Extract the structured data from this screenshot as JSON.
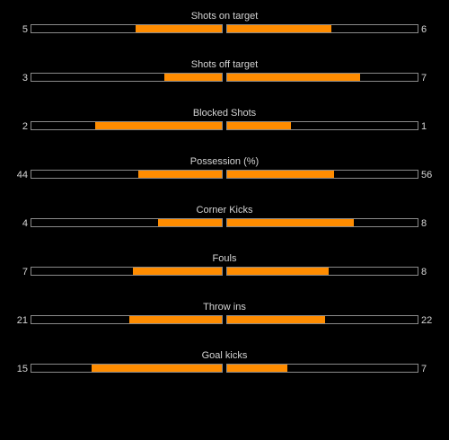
{
  "colors": {
    "background": "#000000",
    "fill": "#ff8c00",
    "border": "#8a8a8a",
    "text": "#d4d4d4"
  },
  "stats": [
    {
      "label": "Shots on target",
      "home": "5",
      "away": "6",
      "home_ratio": 0.455,
      "away_ratio": 0.545
    },
    {
      "label": "Shots off target",
      "home": "3",
      "away": "7",
      "home_ratio": 0.3,
      "away_ratio": 0.7
    },
    {
      "label": "Blocked Shots",
      "home": "2",
      "away": "1",
      "home_ratio": 0.667,
      "away_ratio": 0.333
    },
    {
      "label": "Possession (%)",
      "home": "44",
      "away": "56",
      "home_ratio": 0.44,
      "away_ratio": 0.56
    },
    {
      "label": "Corner Kicks",
      "home": "4",
      "away": "8",
      "home_ratio": 0.333,
      "away_ratio": 0.667
    },
    {
      "label": "Fouls",
      "home": "7",
      "away": "8",
      "home_ratio": 0.467,
      "away_ratio": 0.533
    },
    {
      "label": "Throw ins",
      "home": "21",
      "away": "22",
      "home_ratio": 0.488,
      "away_ratio": 0.512
    },
    {
      "label": "Goal kicks",
      "home": "15",
      "away": "7",
      "home_ratio": 0.682,
      "away_ratio": 0.318
    }
  ]
}
